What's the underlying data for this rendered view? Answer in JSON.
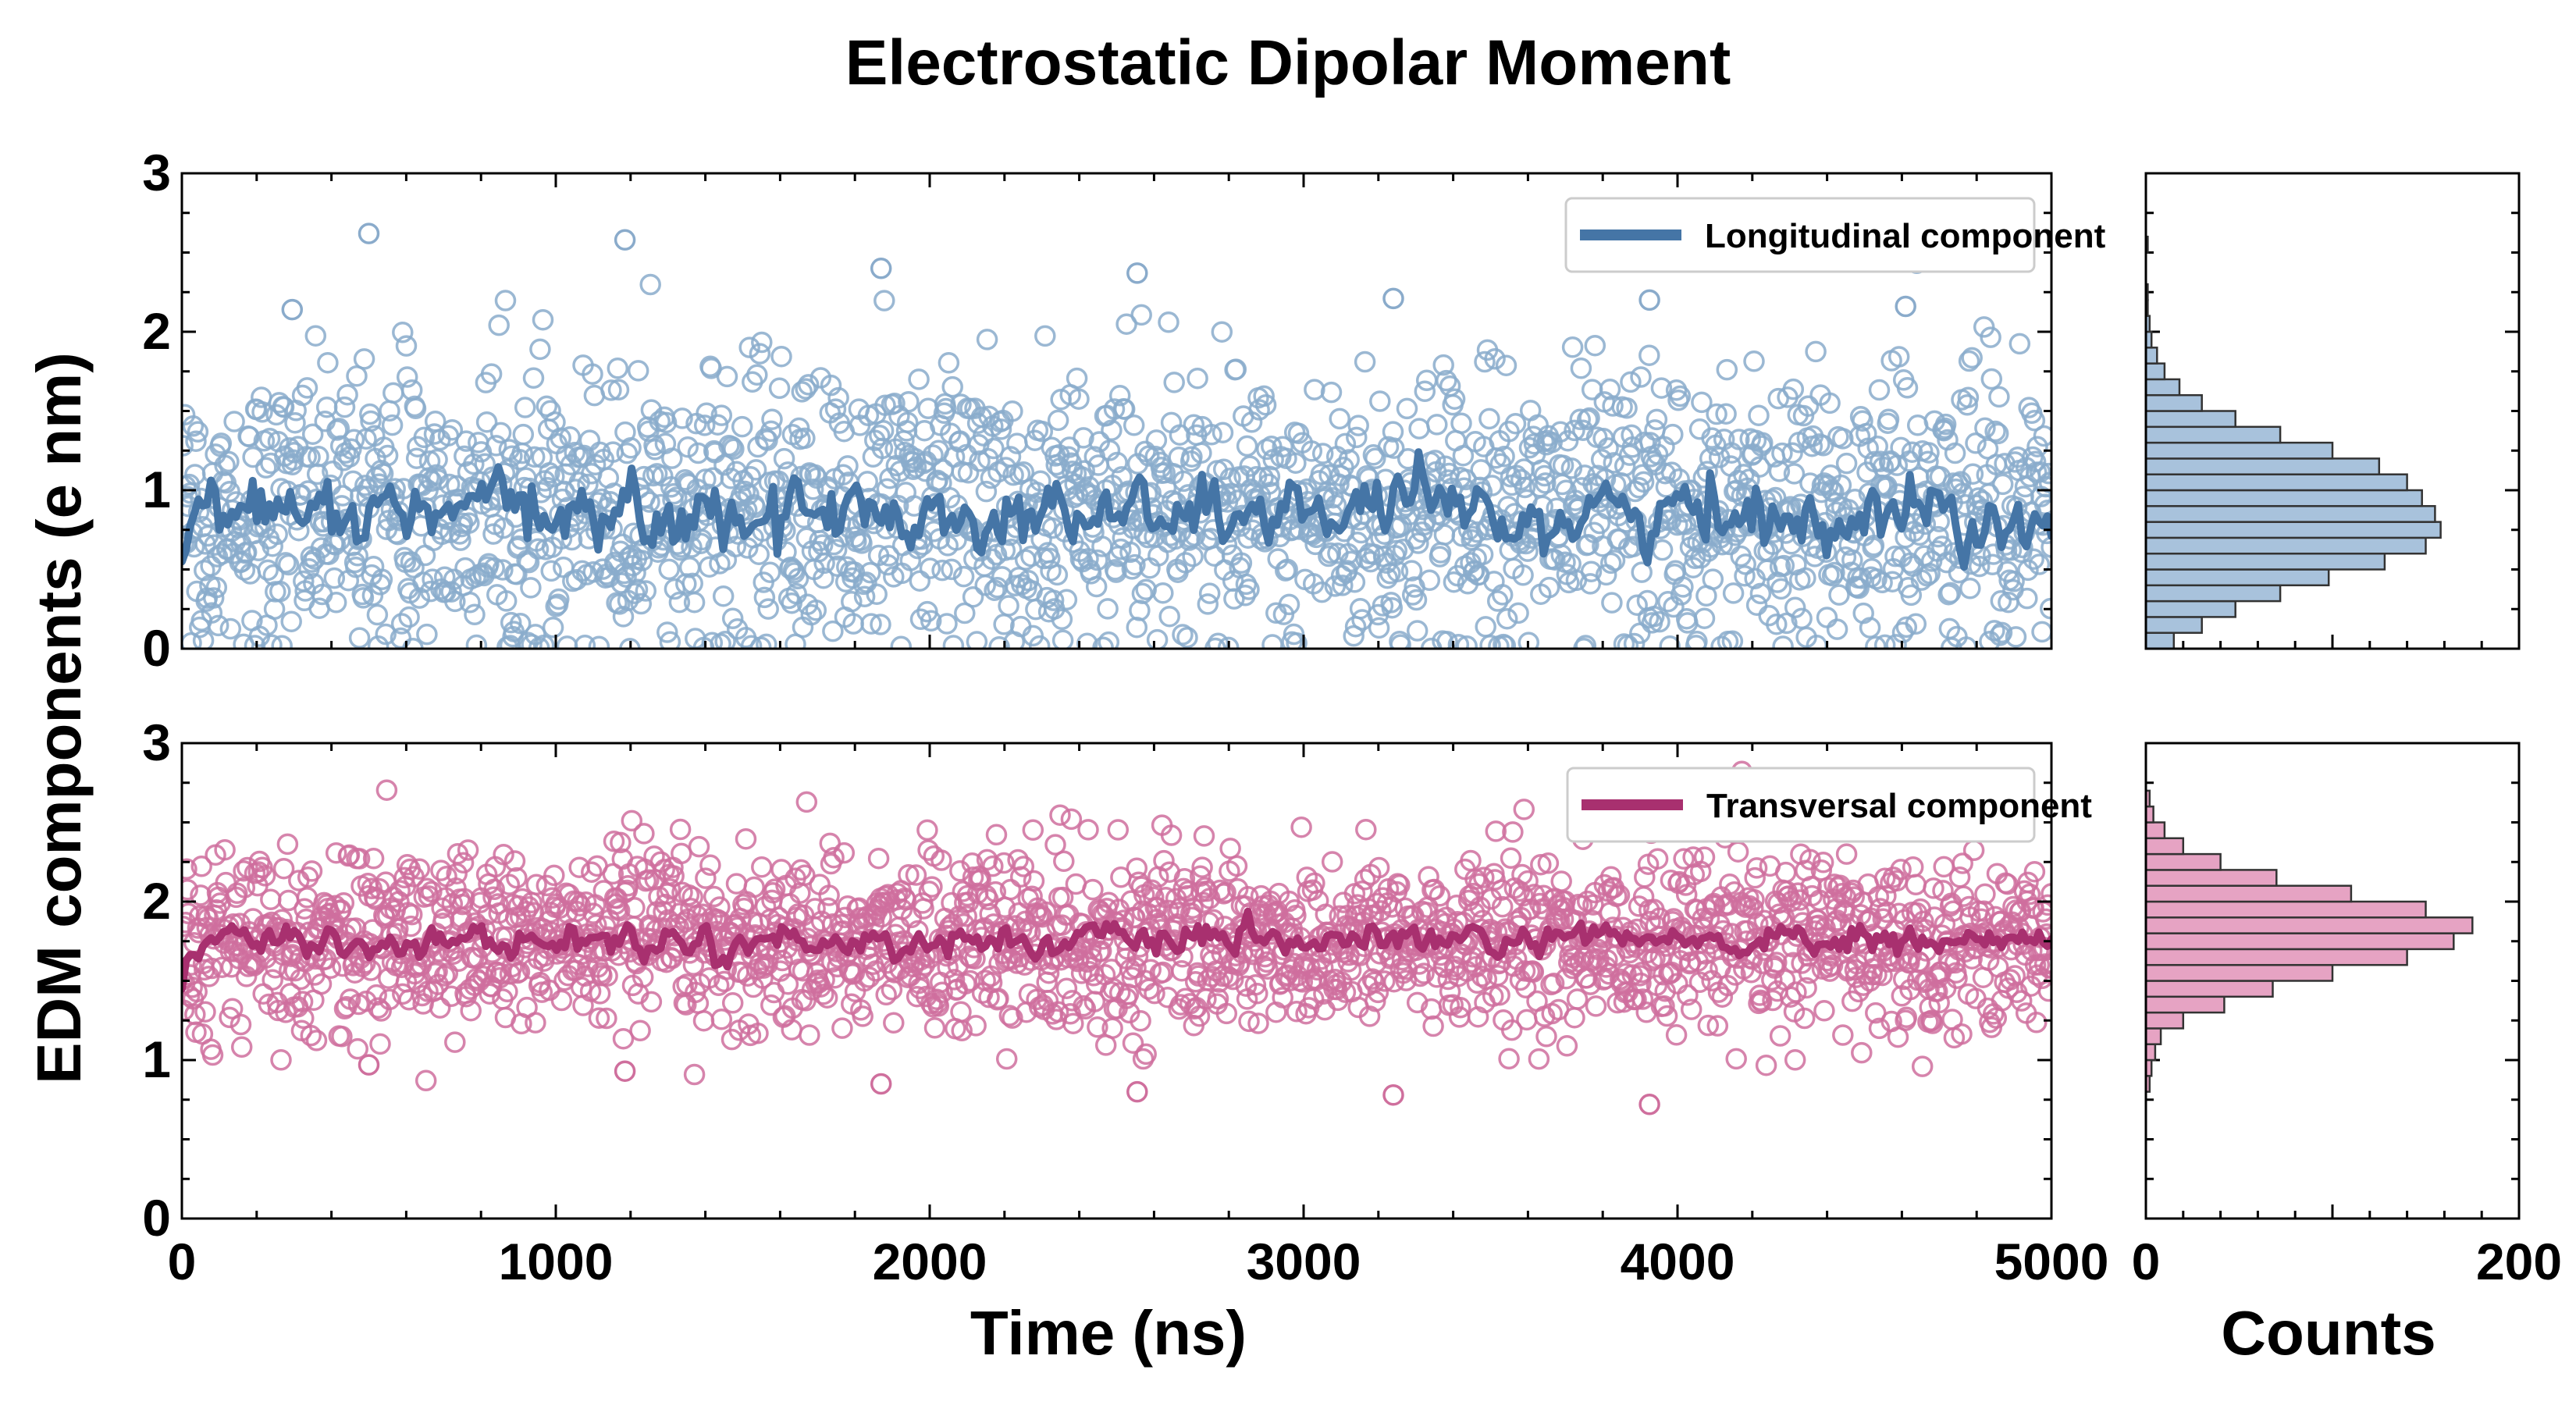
{
  "chart_data": {
    "type": "scatter",
    "title": "Electrostatic Dipolar Moment",
    "ylabel": "EDM components (e nm)",
    "xlabel": "Time (ns)",
    "hist_xlabel": "Counts",
    "xlim": [
      0,
      5000
    ],
    "ylim": [
      0,
      3
    ],
    "hist_xlim": [
      0,
      200
    ],
    "x_ticks": [
      "0",
      "1000",
      "2000",
      "3000",
      "4000",
      "5000"
    ],
    "y_ticks": [
      "0",
      "1",
      "2",
      "3"
    ],
    "hist_ticks": [
      "0",
      "200"
    ],
    "series": [
      {
        "name": "Longitudinal component",
        "color": "#4575a6",
        "marker_color": "#8aabcb",
        "hist_fill": "#a8c2dc",
        "mean": 0.85,
        "spread": 0.45,
        "running_mean_spread": 0.18,
        "points": 2000,
        "outliers_y": [
          2.62,
          2.58,
          2.4,
          2.37,
          2.21,
          2.2,
          2.16,
          2.14
        ],
        "hist_bins": [
          [
            0.0,
            15
          ],
          [
            0.1,
            30
          ],
          [
            0.2,
            48
          ],
          [
            0.3,
            72
          ],
          [
            0.4,
            98
          ],
          [
            0.5,
            128
          ],
          [
            0.6,
            150
          ],
          [
            0.7,
            158
          ],
          [
            0.8,
            155
          ],
          [
            0.9,
            148
          ],
          [
            1.0,
            140
          ],
          [
            1.1,
            125
          ],
          [
            1.2,
            100
          ],
          [
            1.3,
            72
          ],
          [
            1.4,
            48
          ],
          [
            1.5,
            30
          ],
          [
            1.6,
            18
          ],
          [
            1.7,
            10
          ],
          [
            1.8,
            6
          ],
          [
            1.9,
            3
          ],
          [
            2.0,
            2
          ],
          [
            2.1,
            1
          ],
          [
            2.2,
            1
          ],
          [
            2.5,
            1
          ]
        ]
      },
      {
        "name": "Transversal component",
        "color": "#a8306f",
        "marker_color": "#cf6f9d",
        "hist_fill": "#e6a3c3",
        "mean": 1.75,
        "spread": 0.28,
        "running_mean_spread": 0.08,
        "points": 2000,
        "outliers_y": [
          0.97,
          0.93,
          0.85,
          0.8,
          0.78,
          0.72
        ],
        "hist_bins": [
          [
            0.8,
            2
          ],
          [
            0.9,
            3
          ],
          [
            1.0,
            5
          ],
          [
            1.1,
            8
          ],
          [
            1.2,
            20
          ],
          [
            1.3,
            42
          ],
          [
            1.4,
            68
          ],
          [
            1.5,
            100
          ],
          [
            1.6,
            140
          ],
          [
            1.7,
            165
          ],
          [
            1.8,
            175
          ],
          [
            1.9,
            150
          ],
          [
            2.0,
            110
          ],
          [
            2.1,
            70
          ],
          [
            2.2,
            40
          ],
          [
            2.3,
            20
          ],
          [
            2.4,
            10
          ],
          [
            2.5,
            4
          ],
          [
            2.6,
            2
          ]
        ]
      }
    ]
  }
}
